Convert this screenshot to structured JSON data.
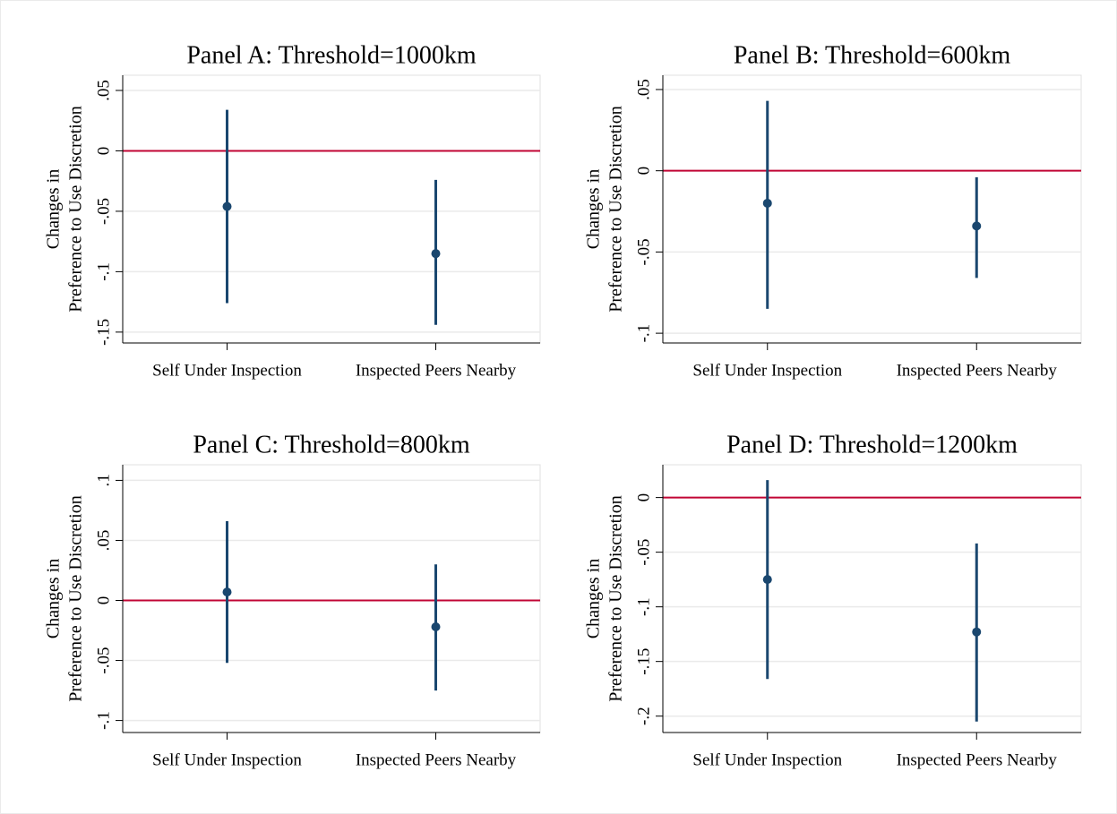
{
  "chart_data": [
    {
      "type": "errorbar",
      "title": "Panel A: Threshold=1000km",
      "ylabel": [
        "Changes in",
        "Preference to Use Discretion"
      ],
      "categories": [
        "Self Under Inspection",
        "Inspected Peers Nearby"
      ],
      "values": [
        -0.046,
        -0.085
      ],
      "lower": [
        -0.126,
        -0.144
      ],
      "upper": [
        0.034,
        -0.024
      ],
      "color": "#1a476f",
      "refline": 0,
      "refline_color": "#c10534",
      "ylim": [
        -0.159,
        0.0626
      ],
      "yticks": [
        {
          "value": 0.05,
          "label": ".05"
        },
        0,
        {
          "value": -0.05,
          "label": "-.05"
        },
        {
          "value": -0.1,
          "label": "-.1"
        },
        {
          "value": -0.15,
          "label": "-.15"
        }
      ],
      "grid": true
    },
    {
      "type": "errorbar",
      "title": "Panel B: Threshold=600km",
      "ylabel": [
        "Changes in",
        "Preference to Use Discretion"
      ],
      "categories": [
        "Self Under Inspection",
        "Inspected Peers Nearby"
      ],
      "values": [
        -0.02,
        -0.034
      ],
      "lower": [
        -0.085,
        -0.066
      ],
      "upper": [
        0.043,
        -0.004
      ],
      "color": "#1a476f",
      "refline": 0,
      "refline_color": "#c10534",
      "ylim": [
        -0.106,
        0.0588
      ],
      "yticks": [
        {
          "value": 0.05,
          "label": ".05"
        },
        0,
        {
          "value": -0.05,
          "label": "-.05"
        },
        {
          "value": -0.1,
          "label": "-.1"
        }
      ],
      "grid": true
    },
    {
      "type": "errorbar",
      "title": "Panel C: Threshold=800km",
      "ylabel": [
        "Changes in",
        "Preference to Use Discretion"
      ],
      "categories": [
        "Self Under Inspection",
        "Inspected Peers Nearby"
      ],
      "values": [
        0.007,
        -0.022
      ],
      "lower": [
        -0.052,
        -0.075
      ],
      "upper": [
        0.066,
        0.03
      ],
      "color": "#1a476f",
      "refline": 0,
      "refline_color": "#c10534",
      "ylim": [
        -0.11,
        0.113
      ],
      "yticks": [
        {
          "value": 0.1,
          "label": ".1"
        },
        {
          "value": 0.05,
          "label": ".05"
        },
        0,
        {
          "value": -0.05,
          "label": "-.05"
        },
        {
          "value": -0.1,
          "label": "-.1"
        }
      ],
      "grid": true
    },
    {
      "type": "errorbar",
      "title": "Panel D: Threshold=1200km",
      "ylabel": [
        "Changes in",
        "Preference to Use Discretion"
      ],
      "categories": [
        "Self Under Inspection",
        "Inspected Peers Nearby"
      ],
      "values": [
        -0.075,
        -0.123
      ],
      "lower": [
        -0.166,
        -0.205
      ],
      "upper": [
        0.016,
        -0.042
      ],
      "color": "#1a476f",
      "refline": 0,
      "refline_color": "#c10534",
      "ylim": [
        -0.215,
        0.03
      ],
      "yticks": [
        0,
        {
          "value": -0.05,
          "label": "-.05"
        },
        {
          "value": -0.1,
          "label": "-.1"
        },
        {
          "value": -0.15,
          "label": "-.15"
        },
        {
          "value": -0.2,
          "label": "-.2"
        }
      ],
      "grid": true
    }
  ]
}
